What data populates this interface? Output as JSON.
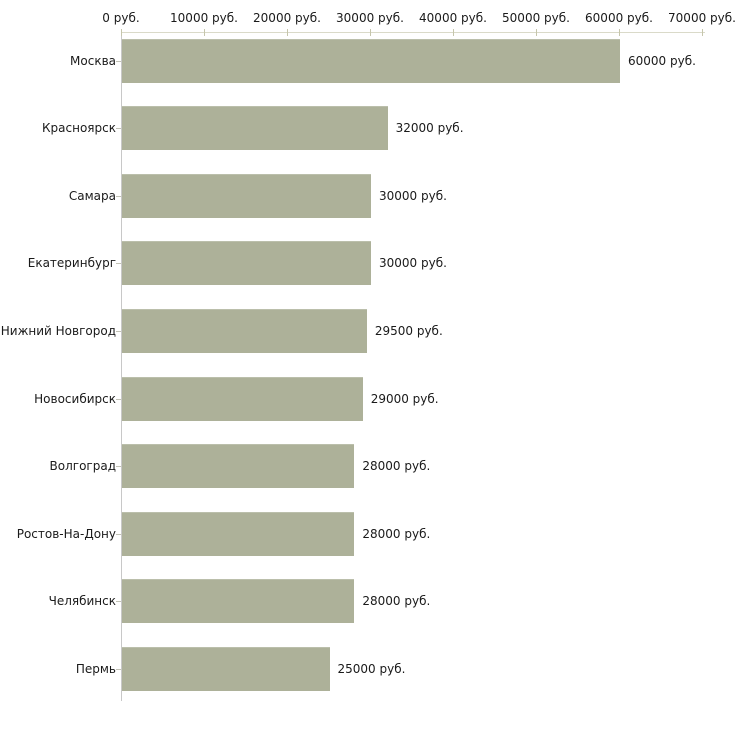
{
  "chart_data": {
    "type": "bar",
    "orientation": "horizontal",
    "title": "",
    "xlabel": "",
    "ylabel": "",
    "currency_unit": "руб.",
    "categories": [
      "Москва",
      "Красноярск",
      "Самара",
      "Екатеринбург",
      "Нижний Новгород",
      "Новосибирск",
      "Волгоград",
      "Ростов-На-Дону",
      "Челябинск",
      "Пермь"
    ],
    "values": [
      60000,
      32000,
      30000,
      30000,
      29500,
      29000,
      28000,
      28000,
      28000,
      25000
    ],
    "value_labels": [
      "60000 руб.",
      "32000 руб.",
      "30000 руб.",
      "30000 руб.",
      "29500 руб.",
      "29000 руб.",
      "28000 руб.",
      "28000 руб.",
      "28000 руб.",
      "25000 руб."
    ],
    "x_tick_labels": [
      "0 руб.",
      "10000 руб.",
      "20000 руб.",
      "30000 руб.",
      "40000 руб.",
      "50000 руб.",
      "60000 руб.",
      "70000 руб."
    ],
    "x_tick_values": [
      0,
      10000,
      20000,
      30000,
      40000,
      50000,
      60000,
      70000
    ],
    "xlim": [
      0,
      70000
    ],
    "grid": false,
    "legend": false,
    "colors": {
      "bar": "#adb199",
      "h_axis": "#dadac9",
      "v_axis": "#c8c8c8",
      "x_tick": "#c6c6ac",
      "cat_tick": "#c2c2b6",
      "text": "#1a1a1a",
      "background": "#ffffff"
    }
  }
}
